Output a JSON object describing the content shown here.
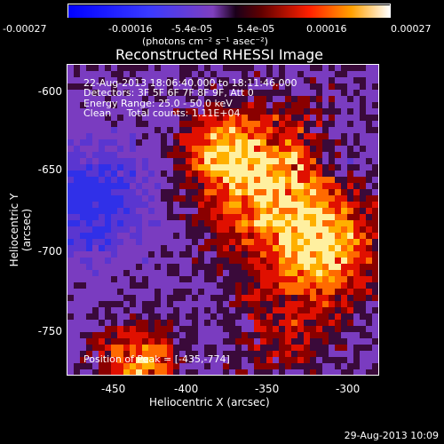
{
  "colorbar": {
    "ticks": [
      "-0.00027",
      "-0.00016",
      "-5.4e-05",
      "5.4e-05",
      "0.00016",
      "0.00027"
    ],
    "units": "(photons cm⁻² s⁻¹ asec⁻²)"
  },
  "title": "Reconstructed RHESSI Image",
  "info": {
    "time": "22-Aug-2013 18:06:40.000 to 18:11:46.000",
    "detectors": "Detectors: 3F 5F 6F 7F 8F 9F, Att 0",
    "energy": "Energy Range: 25.0 - 50.0 keV",
    "algo": "Clean     Total counts: 1.11E+04"
  },
  "peak": "Position of Peak = [-435,-774]",
  "axes": {
    "ylabel": "Heliocentric Y (arcsec)",
    "xlabel": "Heliocentric X (arcsec)",
    "yticks": [
      "-600",
      "-650",
      "-700",
      "-750"
    ],
    "xticks": [
      "-450",
      "-400",
      "-350",
      "-300"
    ]
  },
  "footer": "29-Aug-2013 10:09"
}
